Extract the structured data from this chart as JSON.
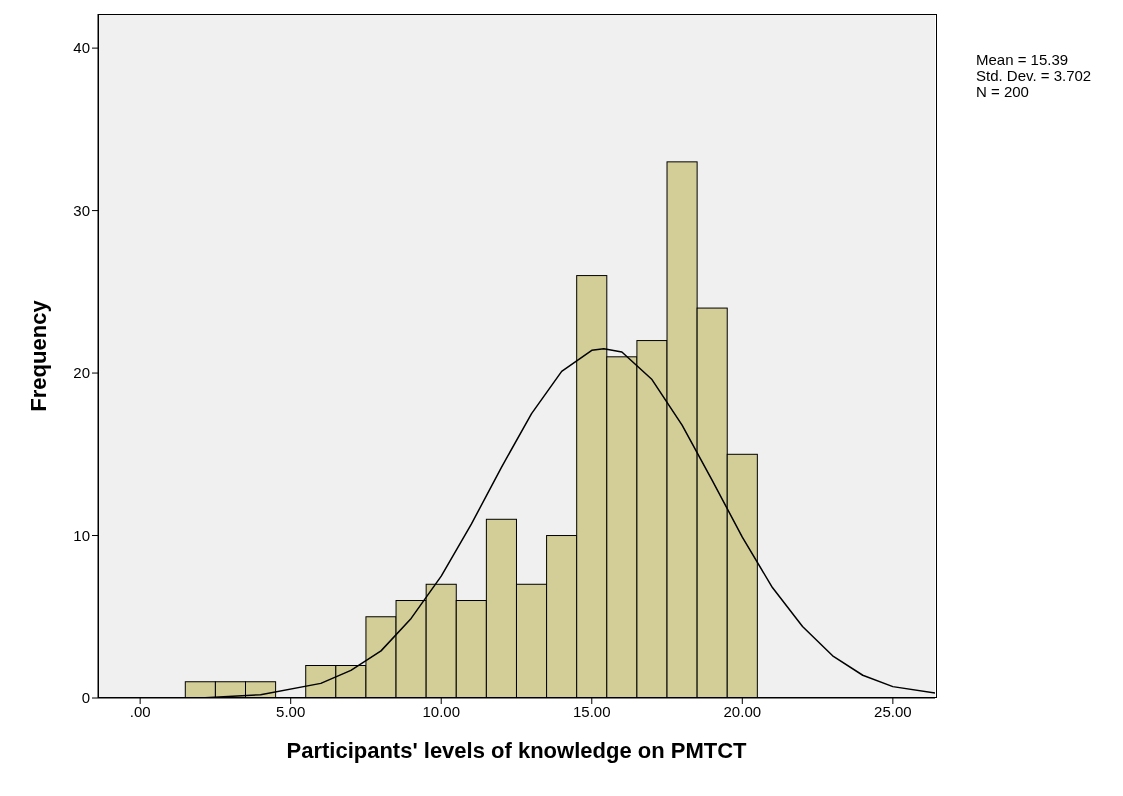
{
  "chart_data": {
    "type": "histogram",
    "xlabel": "Participants' levels of knowledge on PMTCT",
    "ylabel": "Frequency",
    "bins": [
      1.5,
      2.5,
      3.5,
      4.5,
      5.5,
      6.5,
      7.5,
      8.5,
      9.5,
      10.5,
      11.5,
      12.5,
      13.5,
      14.5,
      15.5,
      16.5,
      17.5,
      18.5,
      19.5,
      20.5
    ],
    "values": [
      1,
      1,
      1,
      0,
      2,
      2,
      5,
      6,
      7,
      6,
      11,
      7,
      10,
      26,
      21,
      22,
      33,
      24,
      15
    ],
    "color": "#d3ce98",
    "series": [
      {
        "type": "line",
        "color": "#000000",
        "x": [
          -1.4,
          2,
          4,
          6,
          7,
          8,
          9,
          10,
          11,
          12,
          13,
          14,
          15,
          15.4,
          16,
          17,
          18,
          19,
          20,
          21,
          22,
          23,
          24,
          25,
          26.4
        ],
        "values": [
          0,
          0,
          0.2,
          0.9,
          1.7,
          2.9,
          4.9,
          7.5,
          10.7,
          14.2,
          17.5,
          20.1,
          21.4,
          21.5,
          21.3,
          19.6,
          16.8,
          13.4,
          9.9,
          6.8,
          4.4,
          2.6,
          1.4,
          0.7,
          0.3
        ]
      }
    ],
    "xlim": [
      -1.4,
      26.4
    ],
    "xticks": [
      {
        "value": 0,
        "label": ".00"
      },
      {
        "value": 5,
        "label": "5.00"
      },
      {
        "value": 10,
        "label": "10.00"
      },
      {
        "value": 15,
        "label": "15.00"
      },
      {
        "value": 20,
        "label": "20.00"
      },
      {
        "value": 25,
        "label": "25.00"
      }
    ],
    "ylim": [
      0,
      42.1
    ],
    "yticks": [
      0,
      10,
      20,
      30,
      40
    ],
    "annotations": [
      "Mean = 15.39",
      "Std. Dev. = 3.702",
      "N = 200"
    ]
  }
}
